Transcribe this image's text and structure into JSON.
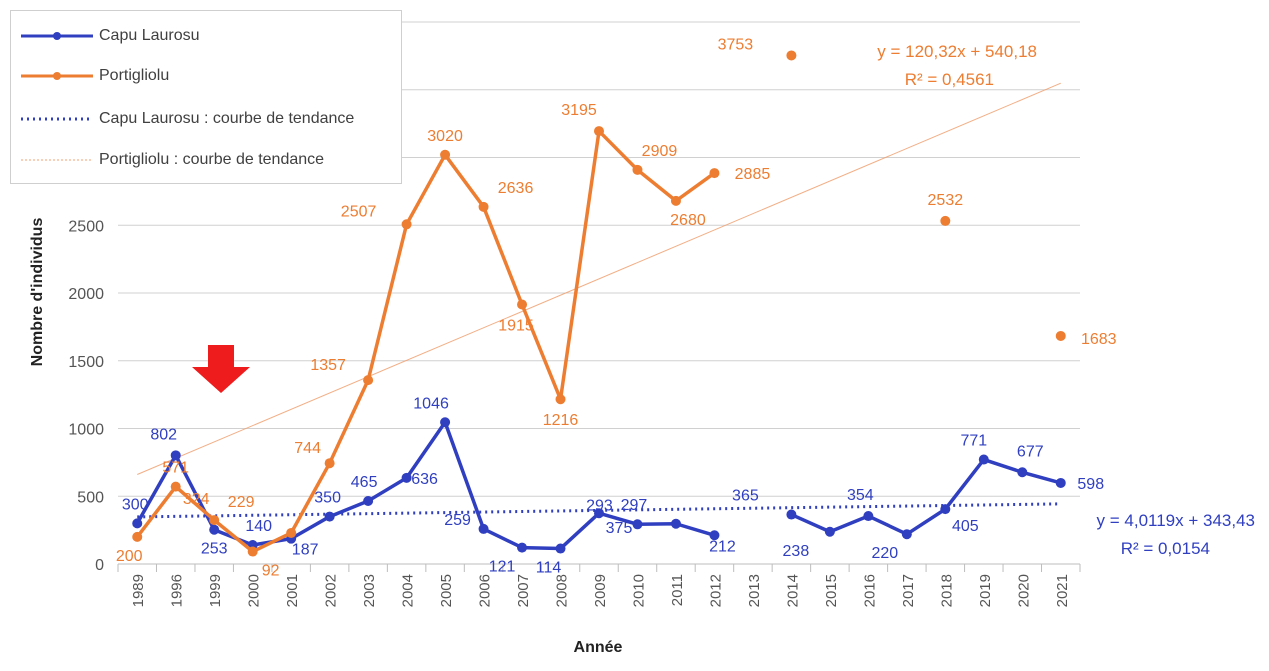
{
  "chart_data": {
    "type": "line",
    "xlabel": "Année",
    "ylabel": "Nombre d'individus",
    "categories": [
      "1989",
      "1996",
      "1999",
      "2000",
      "2001",
      "2002",
      "2003",
      "2004",
      "2005",
      "2006",
      "2007",
      "2008",
      "2009",
      "2010",
      "2011",
      "2012",
      "2013",
      "2014",
      "2015",
      "2016",
      "2017",
      "2018",
      "2019",
      "2020",
      "2021"
    ],
    "ylim": [
      0,
      4000
    ],
    "yticks": [
      0,
      500,
      1000,
      1500,
      2000,
      2500
    ],
    "grid": true,
    "legend_position": "top-left",
    "series": [
      {
        "name": "Capu Laurosu",
        "color": "#2f3fc0",
        "values": [
          300,
          802,
          253,
          140,
          187,
          350,
          465,
          636,
          1046,
          259,
          121,
          114,
          375,
          293,
          297,
          212,
          null,
          365,
          238,
          354,
          220,
          405,
          771,
          677,
          598
        ],
        "data_labels": [
          "300",
          "802",
          "253",
          "140",
          "187",
          "350",
          "465",
          "636",
          "1046",
          "259",
          "121",
          "114",
          "375",
          "293",
          "297",
          "212",
          "",
          "365",
          "238",
          "354",
          "220",
          "405",
          "771",
          "677",
          "598"
        ]
      },
      {
        "name": "Portigliolu",
        "color": "#ed7d31",
        "values": [
          200,
          571,
          324,
          92,
          229,
          744,
          1357,
          2507,
          3020,
          2636,
          1915,
          1216,
          3195,
          2909,
          2680,
          2885,
          null,
          3753,
          null,
          null,
          null,
          2532,
          null,
          null,
          1683
        ],
        "data_labels": [
          "200",
          "571",
          "324",
          "92",
          "229",
          "744",
          "1357",
          "2507",
          "3020",
          "2636",
          "1915",
          "1216",
          "3195",
          "2909",
          "2680",
          "2885",
          "",
          "3753",
          "",
          "",
          "",
          "2532",
          "",
          "",
          "1683"
        ]
      }
    ],
    "trendlines": [
      {
        "name": "Capu Laurosu : courbe de tendance",
        "color": "#2f3fc0",
        "style": "dotted",
        "slope": 4.0119,
        "intercept": 343.43,
        "equation": "y = 4,0119x + 343,43",
        "r2": "R² = 0,0154"
      },
      {
        "name": "Portigliolu : courbe de tendance",
        "color": "#f0a070",
        "style": "thin",
        "slope": 120.32,
        "intercept": 540.18,
        "equation": "y = 120,32x + 540,18",
        "r2": "R² = 0,4561"
      }
    ],
    "annotations": [
      {
        "type": "arrow",
        "direction": "down",
        "color": "#ee1c1c",
        "near_category": "1999"
      }
    ]
  }
}
